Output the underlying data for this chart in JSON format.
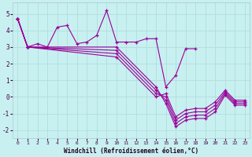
{
  "xlabel": "Windchill (Refroidissement éolien,°C)",
  "bg_color": "#c8f0f0",
  "grid_color": "#b0dede",
  "line_color": "#990099",
  "xlim": [
    -0.5,
    23.5
  ],
  "ylim": [
    -2.5,
    5.7
  ],
  "xticks": [
    0,
    1,
    2,
    3,
    4,
    5,
    6,
    7,
    8,
    9,
    10,
    11,
    12,
    13,
    14,
    15,
    16,
    17,
    18,
    19,
    20,
    21,
    22,
    23
  ],
  "yticks": [
    -2,
    -1,
    0,
    1,
    2,
    3,
    4,
    5
  ],
  "line1_x": [
    0,
    1,
    2,
    3,
    4,
    5,
    6,
    7,
    8,
    9,
    10,
    11,
    12,
    13,
    14,
    15,
    16,
    17,
    18
  ],
  "line1_y": [
    4.7,
    3.0,
    3.2,
    3.0,
    4.2,
    4.3,
    3.2,
    3.3,
    3.7,
    5.2,
    3.3,
    3.3,
    3.3,
    3.5,
    3.5,
    0.6,
    1.3,
    2.9,
    2.9
  ],
  "line2_x": [
    0,
    1,
    10,
    14,
    15,
    16,
    17,
    18,
    19,
    20,
    21,
    22,
    23
  ],
  "line2_y": [
    4.7,
    3.0,
    3.0,
    0.6,
    -0.4,
    -1.8,
    -1.4,
    -1.3,
    -1.3,
    -0.9,
    0.1,
    -0.5,
    -0.5
  ],
  "line3_x": [
    0,
    1,
    10,
    14,
    15,
    16,
    17,
    18,
    19,
    20,
    21,
    22,
    23
  ],
  "line3_y": [
    4.7,
    3.0,
    2.8,
    0.4,
    -0.2,
    -1.6,
    -1.2,
    -1.1,
    -1.1,
    -0.7,
    0.2,
    -0.4,
    -0.4
  ],
  "line4_x": [
    0,
    1,
    10,
    14,
    15,
    16,
    17,
    18,
    19,
    20,
    21,
    22,
    23
  ],
  "line4_y": [
    4.7,
    3.0,
    2.6,
    0.2,
    0.0,
    -1.4,
    -1.0,
    -0.9,
    -0.9,
    -0.5,
    0.3,
    -0.3,
    -0.3
  ],
  "line5_x": [
    0,
    1,
    10,
    14,
    15,
    16,
    17,
    18,
    19,
    20,
    21,
    22,
    23
  ],
  "line5_y": [
    4.7,
    3.0,
    2.4,
    0.0,
    0.2,
    -1.2,
    -0.8,
    -0.7,
    -0.7,
    -0.3,
    0.4,
    -0.2,
    -0.2
  ]
}
